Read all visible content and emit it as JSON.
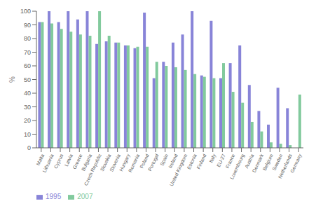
{
  "chart_data": {
    "type": "bar",
    "categories": [
      "Malta",
      "Lithuania",
      "Cyprus",
      "Latvia",
      "Greece",
      "Bulgaria",
      "Czech Republic",
      "Slovakia",
      "Slovenia",
      "Hungary",
      "Romania",
      "Poland",
      "Portugal",
      "Spain",
      "Ireland",
      "United Kingdom",
      "Estonia",
      "Finland",
      "Italy",
      "EU-27",
      "France",
      "Luxembourg",
      "Austria",
      "Denmark",
      "Belgium",
      "Sweden",
      "Netherlands",
      "Germany"
    ],
    "series": [
      {
        "name": "1995",
        "values": [
          92,
          100,
          92,
          100,
          94,
          100,
          76,
          78,
          77,
          75,
          73,
          99,
          51,
          63,
          77,
          83,
          100,
          53,
          93,
          51,
          62,
          75,
          46,
          27,
          17,
          44,
          29,
          0
        ]
      },
      {
        "name": "2007",
        "values": [
          92,
          91,
          87,
          85,
          83,
          82,
          100,
          82,
          77,
          75,
          74,
          74,
          63,
          60,
          59,
          57,
          54,
          52,
          51,
          62,
          41,
          33,
          19,
          12,
          4,
          3,
          2,
          39
        ]
      }
    ],
    "ylabel": "%",
    "ylim": [
      0,
      100
    ],
    "yticks": [
      0,
      10,
      20,
      30,
      40,
      50,
      60,
      70,
      80,
      90,
      100
    ],
    "grid": false,
    "legend": "lower left"
  }
}
